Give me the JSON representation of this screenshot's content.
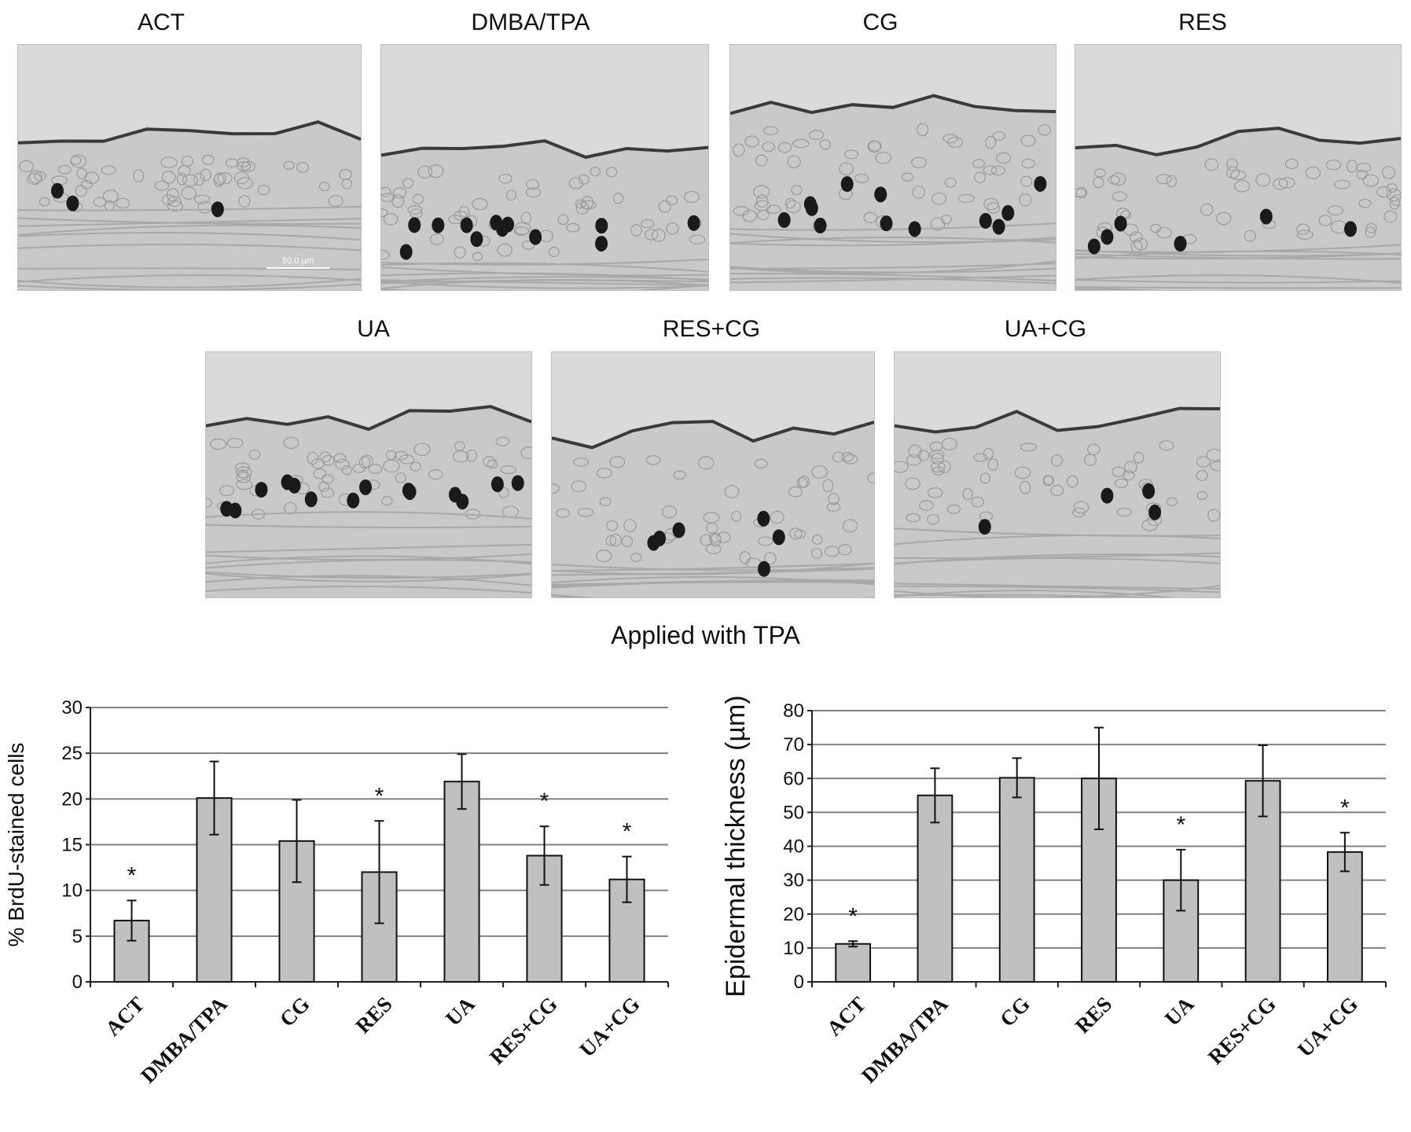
{
  "panels": {
    "row1": [
      {
        "label": "ACT",
        "scale_bar": "50.0 µm"
      },
      {
        "label": "DMBA/TPA"
      },
      {
        "label": "CG"
      },
      {
        "label": "RES"
      }
    ],
    "row2": [
      {
        "label": "UA"
      },
      {
        "label": "RES+CG"
      },
      {
        "label": "UA+CG"
      }
    ]
  },
  "section_title": "Applied with TPA",
  "colors": {
    "bar": "#c0c0c0",
    "bar_stroke": "#111111",
    "grid": "#808080",
    "tissue": "#d6d6d6",
    "nuclei": "#1a1a1a"
  },
  "chart_data": [
    {
      "type": "bar",
      "categories": [
        "ACT",
        "DMBA/TPA",
        "CG",
        "RES",
        "UA",
        "RES+CG",
        "UA+CG"
      ],
      "values": [
        6.7,
        20.1,
        15.4,
        12.0,
        21.9,
        13.8,
        11.2
      ],
      "errors": [
        2.2,
        4.0,
        4.5,
        5.6,
        3.0,
        3.2,
        2.5
      ],
      "significant": [
        true,
        false,
        false,
        true,
        false,
        true,
        true
      ],
      "significance_marker": "*",
      "ylabel": "% BrdU-stained cells",
      "xlabel": "",
      "ylim": [
        0,
        30
      ],
      "yticks": [
        0,
        5,
        10,
        15,
        20,
        25,
        30
      ],
      "grid": true
    },
    {
      "type": "bar",
      "categories": [
        "ACT",
        "DMBA/TPA",
        "CG",
        "RES",
        "UA",
        "RES+CG",
        "UA+CG"
      ],
      "values": [
        11.2,
        55.0,
        60.2,
        60.0,
        30.0,
        59.3,
        38.3
      ],
      "errors": [
        0.8,
        8.0,
        5.8,
        15.0,
        9.0,
        10.5,
        5.7
      ],
      "significant": [
        true,
        false,
        false,
        false,
        true,
        false,
        true
      ],
      "significance_marker": "*",
      "ylabel": "Epidermal thickness (µm)",
      "xlabel": "",
      "ylim": [
        0,
        80
      ],
      "yticks": [
        0,
        10,
        20,
        30,
        40,
        50,
        60,
        70,
        80
      ],
      "grid": true
    }
  ]
}
